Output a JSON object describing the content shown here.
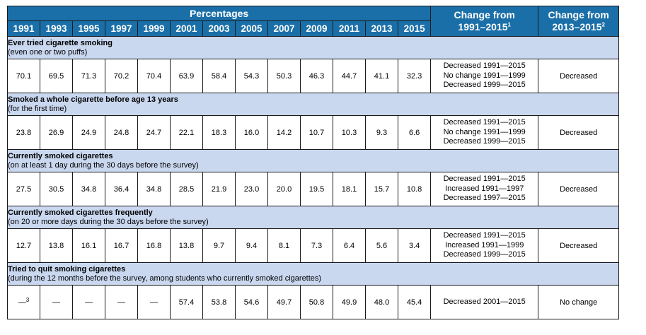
{
  "header": {
    "percentages_label": "Percentages",
    "years": [
      "1991",
      "1993",
      "1995",
      "1997",
      "1999",
      "2001",
      "2003",
      "2005",
      "2007",
      "2009",
      "2011",
      "2013",
      "2015"
    ],
    "change_long_line1": "Change from",
    "change_long_line2": "1991–2015",
    "change_long_note": "1",
    "change_short_line1": "Change from",
    "change_short_line2": "2013–2015",
    "change_short_note": "2"
  },
  "sections": [
    {
      "title": "Ever tried cigarette smoking",
      "subtitle": "(even one or two puffs)",
      "values": [
        "70.1",
        "69.5",
        "71.3",
        "70.2",
        "70.4",
        "63.9",
        "58.4",
        "54.3",
        "50.3",
        "46.3",
        "44.7",
        "41.1",
        "32.3"
      ],
      "trend": [
        "Decreased 1991—2015",
        "No change 1991—1999",
        "Decreased 1999—2015"
      ],
      "change_short": "Decreased"
    },
    {
      "title": "Smoked a whole cigarette before age 13 years",
      "subtitle": "(for the first time)",
      "values": [
        "23.8",
        "26.9",
        "24.9",
        "24.8",
        "24.7",
        "22.1",
        "18.3",
        "16.0",
        "14.2",
        "10.7",
        "10.3",
        "9.3",
        "6.6"
      ],
      "trend": [
        "Decreased 1991—2015",
        "No change 1991—1999",
        "Decreased 1999—2015"
      ],
      "change_short": "Decreased"
    },
    {
      "title": "Currently smoked cigarettes",
      "subtitle": "(on at least 1 day during the 30 days before the survey)",
      "values": [
        "27.5",
        "30.5",
        "34.8",
        "36.4",
        "34.8",
        "28.5",
        "21.9",
        "23.0",
        "20.0",
        "19.5",
        "18.1",
        "15.7",
        "10.8"
      ],
      "trend": [
        "Decreased 1991—2015",
        "Increased 1991—1997",
        "Decreased 1997—2015"
      ],
      "change_short": "Decreased"
    },
    {
      "title": "Currently smoked cigarettes frequently",
      "subtitle": "(on 20 or more days during the 30 days before the survey)",
      "values": [
        "12.7",
        "13.8",
        "16.1",
        "16.7",
        "16.8",
        "13.8",
        "9.7",
        "9.4",
        "8.1",
        "7.3",
        "6.4",
        "5.6",
        "3.4"
      ],
      "trend": [
        "Decreased 1991—2015",
        "Increased 1991—1999",
        "Decreased 1999—2015"
      ],
      "change_short": "Decreased"
    },
    {
      "title": "Tried to quit smoking cigarettes",
      "subtitle": "(during the 12 months before the survey, among students who currently smoked cigarettes)",
      "values": [
        "—",
        "—",
        "—",
        "—",
        "—",
        "57.4",
        "53.8",
        "54.6",
        "49.7",
        "50.8",
        "49.9",
        "48.0",
        "45.4"
      ],
      "first_value_note": "3",
      "trend": [
        "Decreased 2001—2015"
      ],
      "change_short": "No change"
    }
  ]
}
